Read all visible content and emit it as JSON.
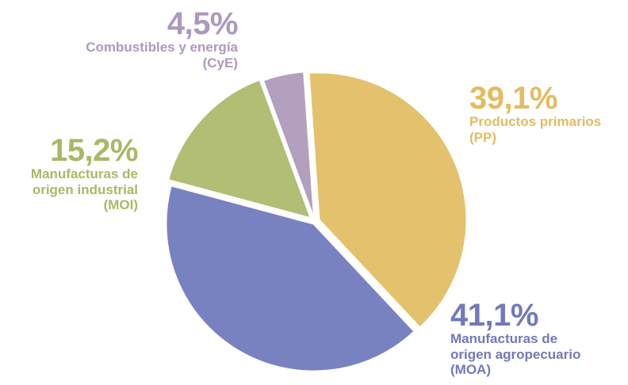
{
  "chart_data": {
    "type": "pie",
    "title": "",
    "unit": "%",
    "slices": [
      {
        "label_pct": "39,1%",
        "label_lines": [
          "Productos primarios",
          "(PP)"
        ],
        "value": 39.1,
        "color": "#E4C16D"
      },
      {
        "label_pct": "41,1%",
        "label_lines": [
          "Manufacturas de",
          "origen agropecuario",
          "(MOA)"
        ],
        "value": 41.1,
        "color": "#7982C0"
      },
      {
        "label_pct": "15,2%",
        "label_lines": [
          "Manufacturas de",
          "origen industrial",
          "(MOI)"
        ],
        "value": 15.2,
        "color": "#B1BE74"
      },
      {
        "label_pct": "4,5%",
        "label_lines": [
          "Combustibles y energía",
          "(CyE)"
        ],
        "value": 4.5,
        "color": "#B3A0BF"
      }
    ],
    "legend": "none",
    "grid": false
  }
}
